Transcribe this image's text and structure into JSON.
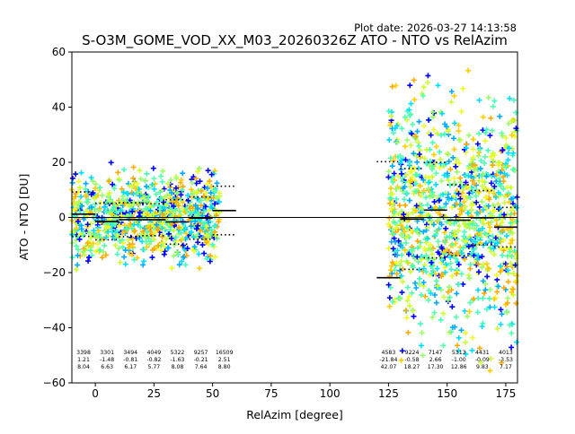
{
  "plot_date": "Plot date: 2026-03-27 14:13:58",
  "chart_data": {
    "type": "scatter",
    "title": "S-O3M_GOME_VOD_XX_M03_20260326Z ATO - NTO vs RelAzim",
    "xlabel": "RelAzim [degree]",
    "ylabel": "ATO - NTO [DU]",
    "xlim": [
      -10,
      180
    ],
    "ylim": [
      -60,
      60
    ],
    "xticks": [
      0,
      25,
      50,
      75,
      100,
      125,
      150,
      175
    ],
    "yticks": [
      -60,
      -40,
      -20,
      0,
      20,
      40,
      60
    ],
    "zero_line": 0,
    "point_marker": "+",
    "point_colors": [
      "#00aaff",
      "#00ddff",
      "#44ffbb",
      "#55ffaa",
      "#99ff66",
      "#ccff33",
      "#eeff22",
      "#ffcc00",
      "#ffaa00",
      "#0000ff"
    ],
    "point_regions": [
      {
        "x": [
          -10,
          53
        ],
        "y": [
          -22,
          22
        ]
      },
      {
        "x": [
          125,
          180
        ],
        "y": [
          -60,
          60
        ]
      }
    ],
    "bins": [
      {
        "x_range": [
          -10,
          0
        ],
        "n": "3398",
        "mean": "1.21",
        "std": "8.04",
        "mean_val": 1.21,
        "std_val": 8.04
      },
      {
        "x_range": [
          0,
          10
        ],
        "n": "3301",
        "mean": "-1.48",
        "std": "6.63",
        "mean_val": -1.48,
        "std_val": 6.63
      },
      {
        "x_range": [
          10,
          20
        ],
        "n": "3494",
        "mean": "-0.81",
        "std": "6.17",
        "mean_val": -0.81,
        "std_val": 6.17
      },
      {
        "x_range": [
          20,
          30
        ],
        "n": "4049",
        "mean": "-0.82",
        "std": "5.77",
        "mean_val": -0.82,
        "std_val": 5.77
      },
      {
        "x_range": [
          30,
          40
        ],
        "n": "5322",
        "mean": "-1.63",
        "std": "8.08",
        "mean_val": -1.63,
        "std_val": 8.08
      },
      {
        "x_range": [
          40,
          50
        ],
        "n": "9257",
        "mean": "-0.21",
        "std": "7.64",
        "mean_val": -0.21,
        "std_val": 7.64
      },
      {
        "x_range": [
          50,
          60
        ],
        "n": "16509",
        "mean": "2.51",
        "std": "8.80",
        "mean_val": 2.51,
        "std_val": 8.8
      },
      {
        "x_range": [
          120,
          130
        ],
        "n": "4583",
        "mean": "-21.84",
        "std": "42.07",
        "mean_val": -21.84,
        "std_val": 42.07
      },
      {
        "x_range": [
          130,
          140
        ],
        "n": "9224",
        "mean": "-0.58",
        "std": "18.27",
        "mean_val": -0.58,
        "std_val": 18.27
      },
      {
        "x_range": [
          140,
          150
        ],
        "n": "7147",
        "mean": "2.66",
        "std": "17.30",
        "mean_val": 2.66,
        "std_val": 17.3
      },
      {
        "x_range": [
          150,
          160
        ],
        "n": "5313",
        "mean": "-1.00",
        "std": "12.86",
        "mean_val": -1.0,
        "std_val": 12.86
      },
      {
        "x_range": [
          160,
          170
        ],
        "n": "4431",
        "mean": "-0.09",
        "std": "9.83",
        "mean_val": -0.09,
        "std_val": 9.83
      },
      {
        "x_range": [
          170,
          180
        ],
        "n": "4013",
        "mean": "-3.53",
        "std": "7.17",
        "mean_val": -3.53,
        "std_val": 7.17
      }
    ]
  }
}
